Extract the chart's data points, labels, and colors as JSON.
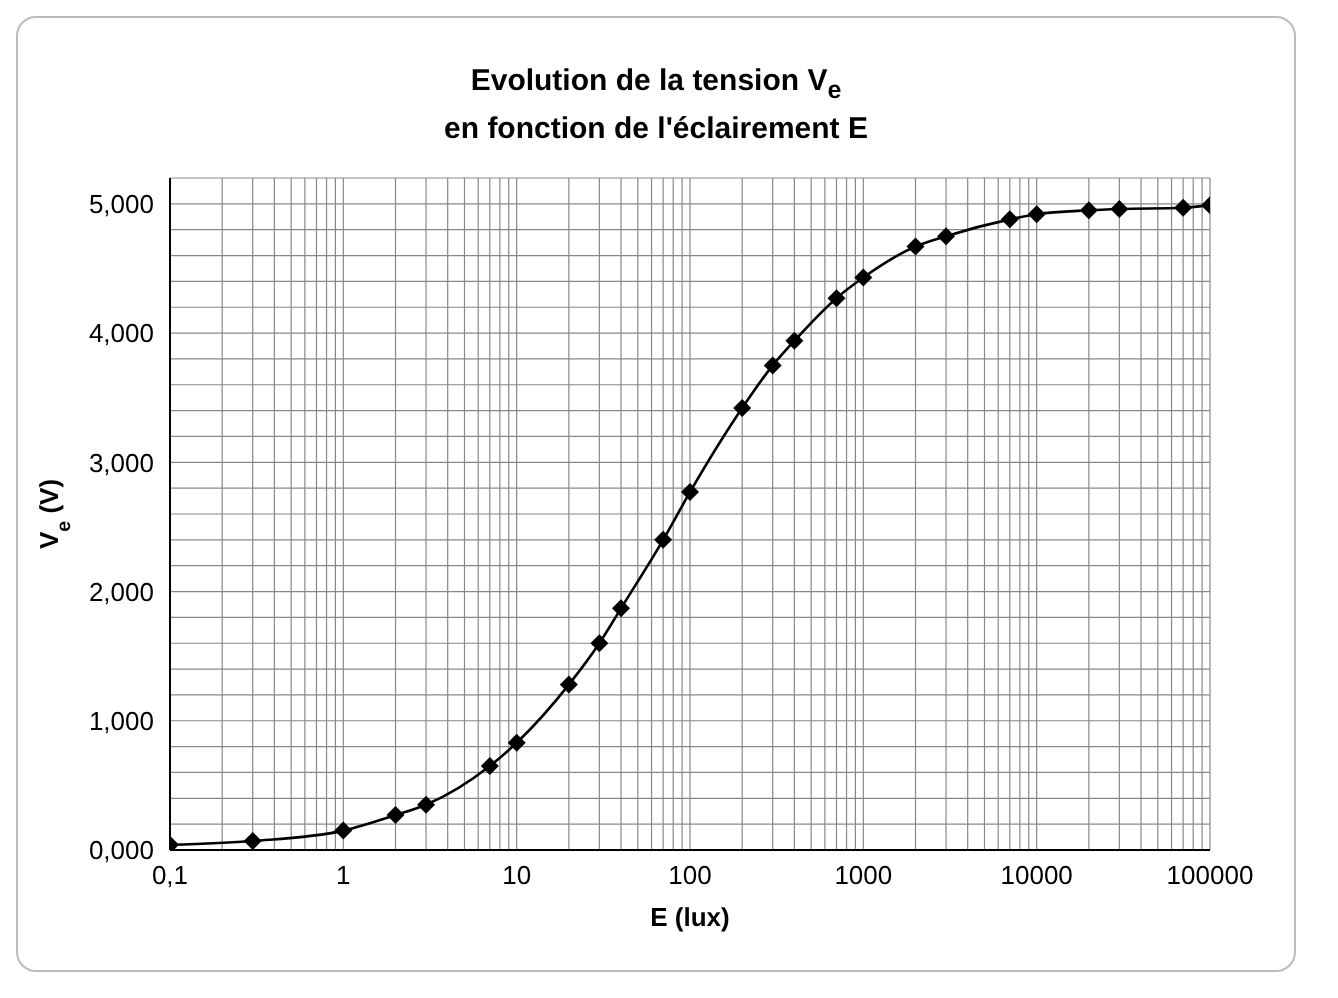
{
  "chart_data": {
    "type": "line",
    "title": "Evolution de la tension V$_{e}$\nen fonction de l'éclairement E",
    "xlabel": "E (lux)",
    "ylabel": "V$_{e}$ (V)",
    "x": [
      0.1,
      0.3,
      1,
      2,
      3,
      7,
      10,
      20,
      30,
      40,
      70,
      100,
      200,
      300,
      400,
      700,
      1000,
      2000,
      3000,
      7000,
      10000,
      20000,
      30000,
      70000,
      100000
    ],
    "series": [
      {
        "color": "#000000",
        "values": [
          0.04,
          0.07,
          0.15,
          0.27,
          0.35,
          0.65,
          0.83,
          1.28,
          1.6,
          1.87,
          2.4,
          2.77,
          3.42,
          3.75,
          3.94,
          4.27,
          4.43,
          4.67,
          4.75,
          4.88,
          4.92,
          4.95,
          4.96,
          4.97,
          4.99
        ]
      }
    ],
    "log": "x",
    "xlim": [
      0.1,
      100000
    ],
    "xticks": [
      {
        "value": 0.1,
        "label": "0,1"
      },
      1,
      10,
      100,
      1000,
      10000,
      100000
    ],
    "ylim": [
      0,
      5.2
    ],
    "yticks": [
      {
        "value": 0,
        "label": "0,000"
      },
      {
        "value": 1,
        "label": "1,000"
      },
      {
        "value": 2,
        "label": "2,000"
      },
      {
        "value": 3,
        "label": "3,000"
      },
      {
        "value": 4,
        "label": "4,000"
      },
      {
        "value": 5,
        "label": "5,000"
      }
    ],
    "grid": true,
    "marker": "diamond",
    "line_style": "solid",
    "legend": false
  }
}
